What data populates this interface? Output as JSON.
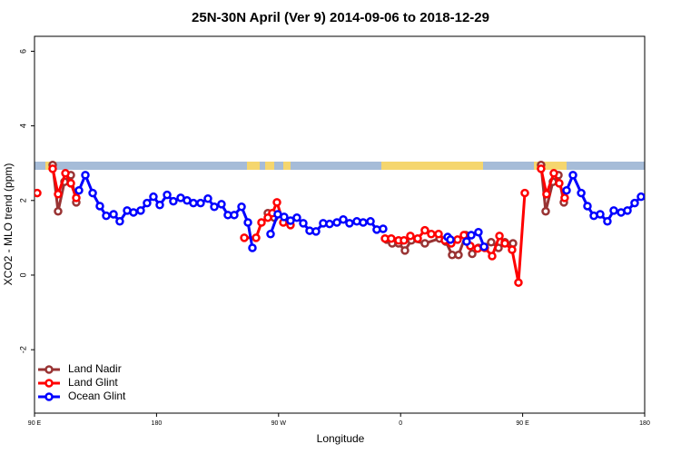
{
  "chart_data": {
    "type": "line",
    "title": "25N-30N April (Ver 9)   2014-09-06 to 2018-12-29",
    "x_label": "Longitude",
    "y_label": "XCO2 - MLO trend (ppm)",
    "xlim": [
      90,
      540
    ],
    "ylim": [
      -3.7,
      6.4
    ],
    "xticks": [
      {
        "value": 90,
        "label": "90 E"
      },
      180,
      {
        "value": 270,
        "label": "90 W"
      },
      {
        "value": 360,
        "label": "0"
      },
      {
        "value": 450,
        "label": "90 E"
      },
      {
        "value": 540,
        "label": "180"
      }
    ],
    "yticks": [
      -2,
      0,
      2,
      4,
      6
    ],
    "legend": "bottom-left",
    "series": [
      {
        "name": "Land Nadir",
        "color": "#993333",
        "x": [
          103.4,
          107.4,
          112.1,
          116.8,
          120.8,
          null,
          262.1,
          266.8,
          null,
          349.8,
          353.8,
          358.5,
          363.2,
          367.9,
          377.9,
          388.7,
          393.3,
          398.0,
          402.7,
          408.1,
          412.8,
          417.4,
          426.8,
          432.2,
          436.9,
          442.9,
          null,
          463.6,
          467.0,
          472.3,
          476.4,
          480.4
        ],
        "values": [
          2.95,
          1.71,
          2.5,
          2.68,
          1.95,
          null,
          1.66,
          1.54,
          null,
          0.95,
          0.85,
          0.85,
          0.66,
          0.93,
          0.85,
          0.98,
          0.9,
          0.54,
          0.54,
          1.07,
          0.57,
          0.73,
          0.88,
          0.73,
          0.88,
          0.85,
          null,
          2.95,
          1.71,
          2.5,
          2.68,
          1.95
        ]
      },
      {
        "name": "Land Glint",
        "color": "#ff0000",
        "x": [
          92.0,
          null,
          103.4,
          107.4,
          112.8,
          116.8,
          120.8,
          null,
          244.7,
          253.4,
          257.4,
          262.1,
          265.4,
          268.8,
          273.5,
          278.8,
          null,
          348.5,
          353.1,
          358.5,
          362.5,
          367.2,
          372.6,
          377.9,
          382.6,
          388.0,
          392.6,
          397.3,
          402.0,
          406.7,
          411.4,
          416.8,
          422.1,
          427.5,
          432.9,
          436.9,
          442.2,
          446.9,
          451.6,
          null,
          463.6,
          467.6,
          473.0,
          477.0,
          481.0
        ],
        "values": [
          2.2,
          null,
          2.85,
          2.17,
          2.73,
          2.46,
          2.07,
          null,
          1.0,
          1.0,
          1.41,
          1.54,
          1.66,
          1.95,
          1.41,
          1.34,
          null,
          0.98,
          0.98,
          0.93,
          0.93,
          1.05,
          0.98,
          1.2,
          1.1,
          1.1,
          0.93,
          0.85,
          0.95,
          1.07,
          0.78,
          0.71,
          0.73,
          0.51,
          1.05,
          0.85,
          0.68,
          -0.2,
          2.2,
          null,
          2.85,
          2.17,
          2.73,
          2.46,
          2.07
        ]
      },
      {
        "name": "Ocean Glint",
        "color": "#0000ff",
        "x": [
          122.8,
          127.5,
          132.9,
          138.2,
          142.9,
          148.3,
          152.9,
          158.3,
          163.0,
          168.3,
          173.0,
          177.7,
          182.4,
          187.8,
          192.4,
          197.8,
          202.5,
          207.2,
          212.5,
          217.9,
          222.6,
          227.9,
          232.6,
          237.3,
          242.7,
          247.4,
          250.7,
          null,
          264.1,
          269.4,
          274.1,
          278.8,
          283.5,
          288.2,
          292.9,
          297.6,
          302.9,
          307.6,
          313.0,
          317.7,
          322.3,
          327.7,
          332.4,
          337.8,
          342.4,
          347.1,
          null,
          394.7,
          396.7,
          null,
          408.7,
          412.1,
          417.4,
          421.5,
          null,
          482.4,
          487.1,
          493.2,
          497.8,
          502.5,
          507.2,
          512.5,
          517.2,
          522.6,
          527.3,
          532.6,
          537.3
        ],
        "values": [
          2.27,
          2.68,
          2.2,
          1.85,
          1.59,
          1.63,
          1.44,
          1.73,
          1.68,
          1.73,
          1.93,
          2.1,
          1.88,
          2.15,
          1.98,
          2.07,
          2.0,
          1.93,
          1.93,
          2.05,
          1.83,
          1.9,
          1.61,
          1.61,
          1.83,
          1.41,
          0.73,
          null,
          1.1,
          1.63,
          1.56,
          1.46,
          1.54,
          1.39,
          1.19,
          1.17,
          1.39,
          1.37,
          1.41,
          1.49,
          1.39,
          1.44,
          1.41,
          1.44,
          1.22,
          1.24,
          null,
          1.02,
          0.95,
          null,
          0.9,
          1.07,
          1.15,
          0.76,
          null,
          2.27,
          2.68,
          2.2,
          1.85,
          1.59,
          1.63,
          1.44,
          1.73,
          1.68,
          1.73,
          1.93,
          2.1
        ]
      }
    ]
  }
}
